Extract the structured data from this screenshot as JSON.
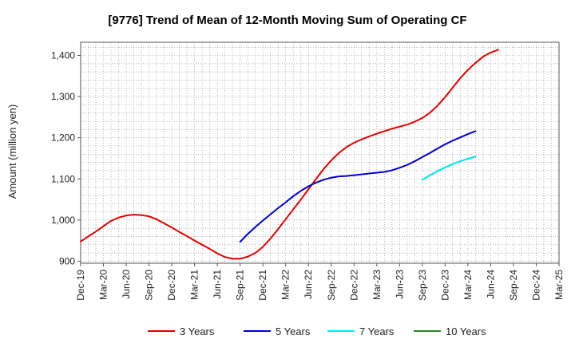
{
  "chart_data": {
    "type": "line",
    "title": "[9776]  Trend of Mean of 12-Month Moving Sum of Operating CF",
    "xlabel": "",
    "ylabel": "Amount (million yen)",
    "ylim": [
      895,
      1432
    ],
    "yticks": [
      900,
      1000,
      1100,
      1200,
      1300,
      1400
    ],
    "ytick_labels": [
      "900",
      "1,000",
      "1,100",
      "1,200",
      "1,300",
      "1,400"
    ],
    "x_range": [
      "Dec-19",
      "Mar-25"
    ],
    "xtick_labels": [
      "Dec-19",
      "Mar-20",
      "Jun-20",
      "Sep-20",
      "Dec-20",
      "Mar-21",
      "Jun-21",
      "Sep-21",
      "Dec-21",
      "Mar-22",
      "Jun-22",
      "Sep-22",
      "Dec-22",
      "Mar-23",
      "Jun-23",
      "Sep-23",
      "Dec-23",
      "Mar-24",
      "Jun-24",
      "Sep-24",
      "Dec-24",
      "Mar-25"
    ],
    "grid": true,
    "legend_position": "bottom",
    "series": [
      {
        "name": "3 Years",
        "color": "#e00000",
        "start": "Dec-19",
        "values": [
          948,
          960,
          972,
          985,
          998,
          1006,
          1011,
          1013,
          1012,
          1009,
          1002,
          992,
          982,
          971,
          961,
          950,
          940,
          930,
          919,
          910,
          906,
          906,
          911,
          920,
          935,
          955,
          978,
          1002,
          1026,
          1050,
          1075,
          1100,
          1124,
          1145,
          1163,
          1177,
          1188,
          1196,
          1203,
          1210,
          1216,
          1222,
          1227,
          1232,
          1239,
          1248,
          1261,
          1278,
          1299,
          1322,
          1345,
          1365,
          1382,
          1397,
          1407,
          1414
        ]
      },
      {
        "name": "5 Years",
        "color": "#0000cc",
        "start": "Sep-21",
        "values": [
          947,
          966,
          983,
          999,
          1014,
          1029,
          1043,
          1058,
          1071,
          1082,
          1091,
          1098,
          1103,
          1106,
          1107,
          1109,
          1111,
          1113,
          1115,
          1117,
          1121,
          1127,
          1134,
          1143,
          1153,
          1163,
          1174,
          1184,
          1193,
          1201,
          1209,
          1216
        ]
      },
      {
        "name": "7 Years",
        "color": "#00e5ee",
        "start": "Sep-23",
        "values": [
          1098,
          1109,
          1119,
          1128,
          1136,
          1143,
          1149,
          1154
        ]
      },
      {
        "name": "10 Years",
        "color": "#228b22",
        "start": "Mar-24",
        "values": []
      }
    ]
  }
}
